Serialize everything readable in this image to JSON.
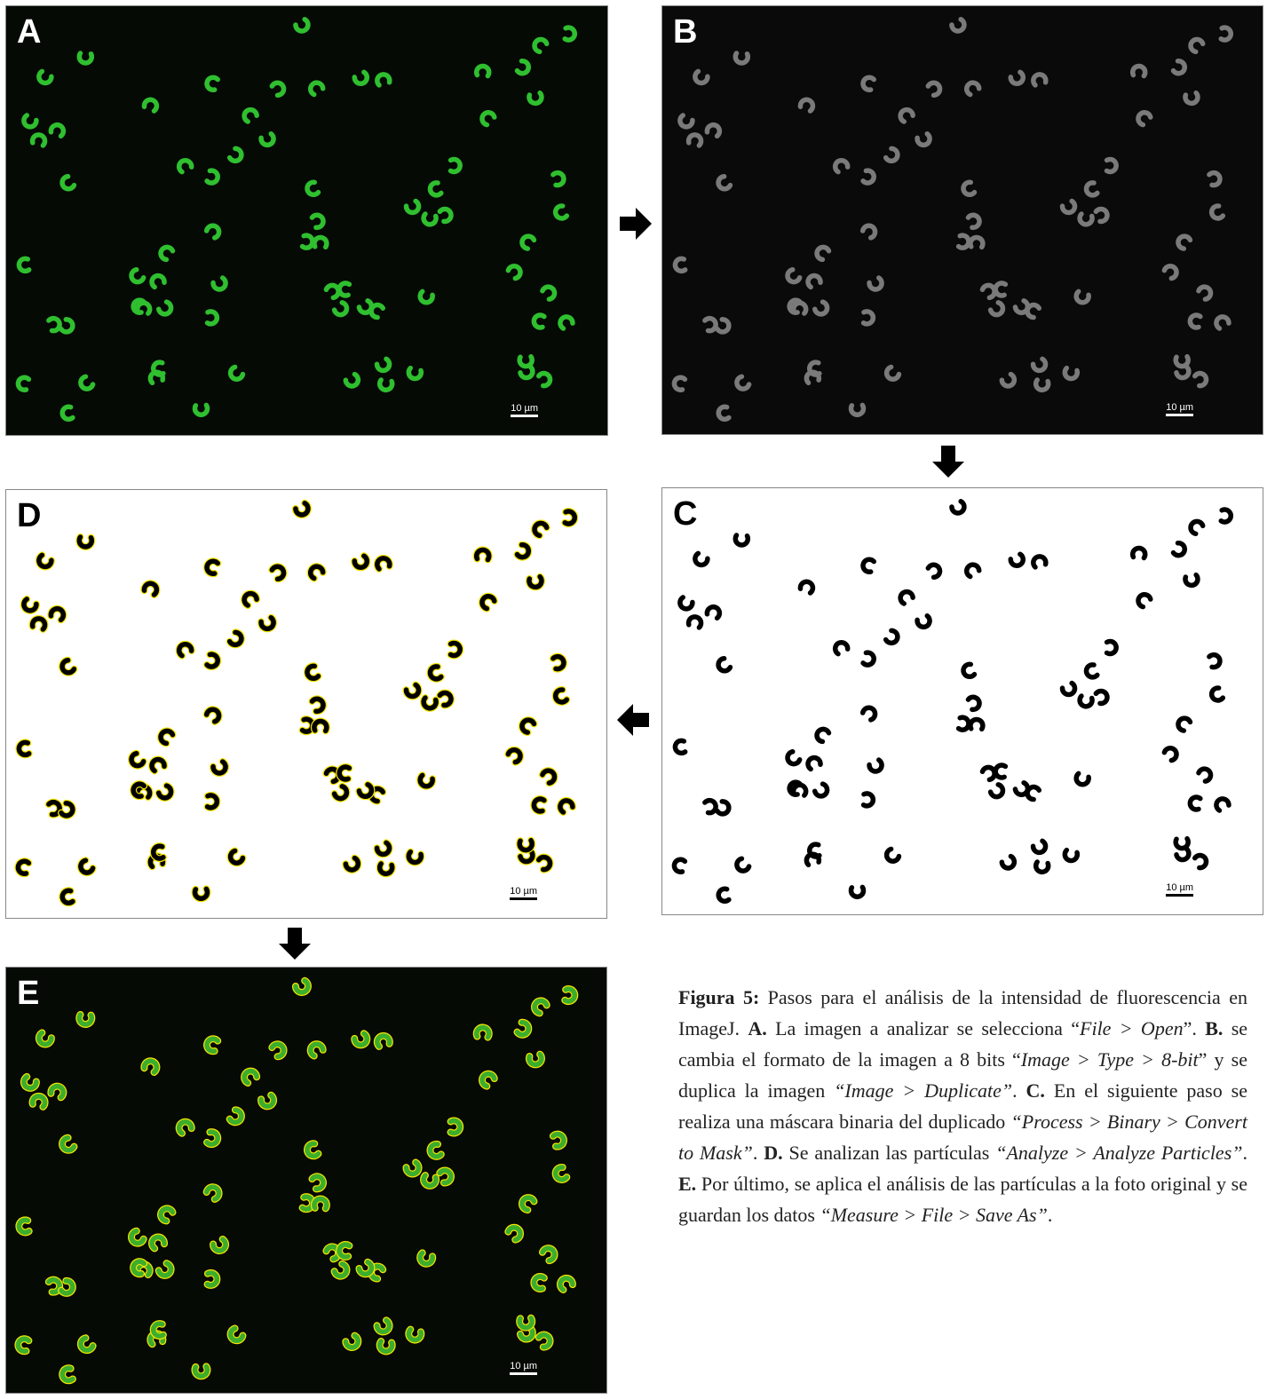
{
  "panels": [
    {
      "label": "A",
      "scale_bar": "10 µm",
      "style": "green"
    },
    {
      "label": "B",
      "scale_bar": "10 µm",
      "style": "gray"
    },
    {
      "label": "C",
      "scale_bar": "10 µm",
      "style": "mask"
    },
    {
      "label": "D",
      "scale_bar": "10 µm",
      "style": "outlined-mask"
    },
    {
      "label": "E",
      "scale_bar": "10 µm",
      "style": "outlined-green"
    }
  ],
  "caption": [
    {
      "text": "Figura 5:",
      "style": "bold"
    },
    {
      "text": " Pasos para el análisis de la intensidad de fluorescencia en ImageJ. ",
      "style": "normal"
    },
    {
      "text": "A.",
      "style": "bold"
    },
    {
      "text": " La imagen a analizar se selecciona “",
      "style": "normal"
    },
    {
      "text": "File > Open",
      "style": "italic"
    },
    {
      "text": "”. ",
      "style": "normal"
    },
    {
      "text": "B.",
      "style": "bold"
    },
    {
      "text": " se cambia el formato de la imagen a 8 bits “",
      "style": "normal"
    },
    {
      "text": "Image > Type > 8-bit",
      "style": "italic"
    },
    {
      "text": "” y se duplica la imagen ",
      "style": "normal"
    },
    {
      "text": "“Image > Duplicate”",
      "style": "italic"
    },
    {
      "text": ". ",
      "style": "normal"
    },
    {
      "text": "C.",
      "style": "bold"
    },
    {
      "text": " En el siguiente paso se realiza una máscara binaria del duplicado ",
      "style": "normal"
    },
    {
      "text": "“Process > Binary > Convert to Mask”",
      "style": "italic"
    },
    {
      "text": ". ",
      "style": "normal"
    },
    {
      "text": "D.",
      "style": "bold"
    },
    {
      "text": " Se analizan las partículas ",
      "style": "normal"
    },
    {
      "text": "“Analyze > Analyze Particles”",
      "style": "italic"
    },
    {
      "text": ". ",
      "style": "normal"
    },
    {
      "text": "E.",
      "style": "bold"
    },
    {
      "text": " Por último, se aplica el análisis de las partículas a la foto original y se guardan los datos ",
      "style": "normal"
    },
    {
      "text": "“Measure > File > Save As”",
      "style": "italic"
    },
    {
      "text": ".",
      "style": "normal"
    }
  ]
}
